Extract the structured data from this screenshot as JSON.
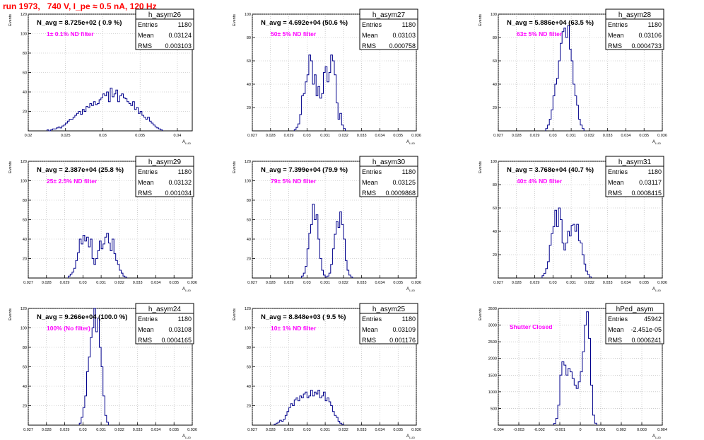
{
  "page": {
    "title": "run 1973,   740 V, I_pe ≈ 0.5 nA, 120 Hz"
  },
  "colors": {
    "hist": "#00008b",
    "note": "#ff00ff",
    "title": "#ff0000",
    "grid": "#b0b0b0"
  },
  "chart_data": [
    {
      "type": "bar",
      "name": "h_asym26",
      "ylabel": "Events",
      "xlabel": "A_LUD",
      "header": "N_avg = 8.725e+02 ( 0.9 %)",
      "note": "1± 0.1% ND filter",
      "stats": {
        "entries": "1180",
        "mean": "0.03124",
        "rms": "0.003103"
      },
      "xlim": [
        0.02,
        0.042
      ],
      "xticks": [
        "0.02",
        "0.025",
        "0.03",
        "0.035",
        "0.04"
      ],
      "xtick_values": [
        0.02,
        0.025,
        0.03,
        0.035,
        0.04
      ],
      "ylim": [
        0,
        120
      ],
      "yticks": [
        "20",
        "40",
        "60",
        "80",
        "100",
        "120"
      ],
      "ytick_values": [
        20,
        40,
        60,
        80,
        100,
        120
      ],
      "x_start": 0.0225,
      "bin_width": 0.00025,
      "values": [
        1,
        0,
        1,
        2,
        2,
        3,
        4,
        3,
        5,
        6,
        8,
        10,
        12,
        12,
        14,
        16,
        18,
        20,
        17,
        22,
        20,
        25,
        24,
        28,
        26,
        30,
        27,
        28,
        32,
        34,
        38,
        36,
        40,
        30,
        44,
        35,
        38,
        42,
        30,
        36,
        38,
        34,
        33,
        30,
        28,
        26,
        30,
        22,
        24,
        18,
        20,
        16,
        14,
        12,
        14,
        10,
        8,
        6,
        4,
        3,
        2,
        1
      ]
    },
    {
      "type": "bar",
      "name": "h_asym27",
      "ylabel": "Events",
      "xlabel": "A_LUD",
      "header": "N_avg = 4.692e+04 (50.6 %)",
      "note": "50± 5% ND filter",
      "stats": {
        "entries": "1180",
        "mean": "0.03103",
        "rms": "0.000758"
      },
      "xlim": [
        0.027,
        0.036
      ],
      "xticks": [
        "0.027",
        "0.028",
        "0.029",
        "0.03",
        "0.031",
        "0.032",
        "0.033",
        "0.034",
        "0.035",
        "0.036"
      ],
      "xtick_values": [
        0.027,
        0.028,
        0.029,
        0.03,
        0.031,
        0.032,
        0.033,
        0.034,
        0.035,
        0.036
      ],
      "ylim": [
        0,
        100
      ],
      "yticks": [
        "20",
        "40",
        "60",
        "80",
        "100"
      ],
      "ytick_values": [
        20,
        40,
        60,
        80,
        100
      ],
      "x_start": 0.0293,
      "bin_width": 0.0001,
      "values": [
        1,
        3,
        6,
        14,
        30,
        32,
        42,
        48,
        65,
        60,
        40,
        48,
        30,
        38,
        28,
        32,
        50,
        55,
        42,
        50,
        65,
        60,
        48,
        24,
        10,
        15,
        5,
        2
      ]
    },
    {
      "type": "bar",
      "name": "h_asym28",
      "ylabel": "Events",
      "xlabel": "A_LUD",
      "header": "N_avg = 5.886e+04 (63.5 %)",
      "note": "63± 5% ND filter",
      "stats": {
        "entries": "1180",
        "mean": "0.03106",
        "rms": "0.0004733"
      },
      "xlim": [
        0.027,
        0.036
      ],
      "xticks": [
        "0.027",
        "0.028",
        "0.029",
        "0.03",
        "0.031",
        "0.032",
        "0.033",
        "0.034",
        "0.035",
        "0.036"
      ],
      "xtick_values": [
        0.027,
        0.028,
        0.029,
        0.03,
        0.031,
        0.032,
        0.033,
        0.034,
        0.035,
        0.036
      ],
      "ylim": [
        0,
        100
      ],
      "yticks": [
        "20",
        "40",
        "60",
        "80",
        "100"
      ],
      "ytick_values": [
        20,
        40,
        60,
        80,
        100
      ],
      "x_start": 0.0296,
      "bin_width": 0.0001,
      "values": [
        2,
        5,
        10,
        18,
        30,
        40,
        45,
        60,
        75,
        85,
        88,
        80,
        90,
        70,
        60,
        40,
        30,
        22,
        10,
        5,
        2
      ]
    },
    {
      "type": "bar",
      "name": "h_asym29",
      "ylabel": "Events",
      "xlabel": "A_LUD",
      "header": "N_avg = 2.387e+04 (25.8 %)",
      "note": "25± 2.5% ND filter",
      "stats": {
        "entries": "1180",
        "mean": "0.03132",
        "rms": "0.001034"
      },
      "xlim": [
        0.027,
        0.036
      ],
      "xticks": [
        "0.027",
        "0.028",
        "0.029",
        "0.03",
        "0.031",
        "0.032",
        "0.033",
        "0.034",
        "0.035",
        "0.036"
      ],
      "xtick_values": [
        0.027,
        0.028,
        0.029,
        0.03,
        0.031,
        0.032,
        0.033,
        0.034,
        0.035,
        0.036
      ],
      "ylim": [
        0,
        120
      ],
      "yticks": [
        "20",
        "40",
        "60",
        "80",
        "100",
        "120"
      ],
      "ytick_values": [
        20,
        40,
        60,
        80,
        100,
        120
      ],
      "x_start": 0.0292,
      "bin_width": 0.0001,
      "values": [
        2,
        4,
        6,
        10,
        18,
        26,
        40,
        35,
        44,
        38,
        42,
        32,
        40,
        20,
        14,
        20,
        28,
        38,
        30,
        35,
        42,
        46,
        36,
        28,
        40,
        25,
        18,
        14,
        8,
        5,
        2,
        1
      ]
    },
    {
      "type": "bar",
      "name": "h_asym30",
      "ylabel": "Events",
      "xlabel": "A_LUD",
      "header": "N_avg = 7.399e+04 (79.9 %)",
      "note": "79± 5% ND filter",
      "stats": {
        "entries": "1180",
        "mean": "0.03125",
        "rms": "0.0009868"
      },
      "xlim": [
        0.027,
        0.036
      ],
      "xticks": [
        "0.027",
        "0.028",
        "0.029",
        "0.03",
        "0.031",
        "0.032",
        "0.033",
        "0.034",
        "0.035",
        "0.036"
      ],
      "xtick_values": [
        0.027,
        0.028,
        0.029,
        0.03,
        0.031,
        0.032,
        0.033,
        0.034,
        0.035,
        0.036
      ],
      "ylim": [
        0,
        120
      ],
      "yticks": [
        "20",
        "40",
        "60",
        "80",
        "100",
        "120"
      ],
      "ytick_values": [
        20,
        40,
        60,
        80,
        100,
        120
      ],
      "x_start": 0.0297,
      "bin_width": 0.0001,
      "values": [
        2,
        5,
        12,
        30,
        46,
        55,
        76,
        60,
        65,
        40,
        20,
        8,
        3,
        1,
        2,
        5,
        14,
        30,
        45,
        58,
        52,
        68,
        55,
        40,
        18,
        8,
        3,
        1
      ]
    },
    {
      "type": "bar",
      "name": "h_asym31",
      "ylabel": "Events",
      "xlabel": "A_LUD",
      "header": "N_avg = 3.768e+04 (40.7 %)",
      "note": "40± 4% ND filter",
      "stats": {
        "entries": "1180",
        "mean": "0.03117",
        "rms": "0.0008415"
      },
      "xlim": [
        0.027,
        0.036
      ],
      "xticks": [
        "0.027",
        "0.028",
        "0.029",
        "0.03",
        "0.031",
        "0.032",
        "0.033",
        "0.034",
        "0.035",
        "0.036"
      ],
      "xtick_values": [
        0.027,
        0.028,
        0.029,
        0.03,
        0.031,
        0.032,
        0.033,
        0.034,
        0.035,
        0.036
      ],
      "ylim": [
        0,
        100
      ],
      "yticks": [
        "20",
        "40",
        "60",
        "80",
        "100"
      ],
      "ytick_values": [
        20,
        40,
        60,
        80,
        100
      ],
      "x_start": 0.0294,
      "bin_width": 0.0001,
      "values": [
        2,
        4,
        8,
        14,
        28,
        38,
        44,
        58,
        44,
        60,
        50,
        30,
        24,
        30,
        40,
        36,
        45,
        46,
        40,
        46,
        32,
        30,
        20,
        12,
        6,
        3,
        1
      ]
    },
    {
      "type": "bar",
      "name": "h_asym24",
      "ylabel": "Events",
      "xlabel": "A_LUD",
      "header": "N_avg = 9.266e+04 (100.0 %)",
      "note": "100% (No filter)",
      "stats": {
        "entries": "1180",
        "mean": "0.03108",
        "rms": "0.0004165"
      },
      "xlim": [
        0.027,
        0.036
      ],
      "xticks": [
        "0.027",
        "0.028",
        "0.029",
        "0.03",
        "0.031",
        "0.032",
        "0.033",
        "0.034",
        "0.035",
        "0.036"
      ],
      "xtick_values": [
        0.027,
        0.028,
        0.029,
        0.03,
        0.031,
        0.032,
        0.033,
        0.034,
        0.035,
        0.036
      ],
      "ylim": [
        0,
        120
      ],
      "yticks": [
        "20",
        "40",
        "60",
        "80",
        "100",
        "120"
      ],
      "ytick_values": [
        20,
        40,
        60,
        80,
        100,
        120
      ],
      "x_start": 0.0298,
      "bin_width": 0.0001,
      "values": [
        2,
        8,
        18,
        30,
        55,
        70,
        90,
        100,
        120,
        96,
        110,
        80,
        60,
        30,
        10,
        3
      ]
    },
    {
      "type": "bar",
      "name": "h_asym25",
      "ylabel": "Events",
      "xlabel": "A_LUD",
      "header": "N_avg = 8.848e+03 ( 9.5 %)",
      "note": "10± 1% ND filter",
      "stats": {
        "entries": "1180",
        "mean": "0.03109",
        "rms": "0.001176"
      },
      "xlim": [
        0.027,
        0.036
      ],
      "xticks": [
        "0.027",
        "0.028",
        "0.029",
        "0.03",
        "0.031",
        "0.032",
        "0.033",
        "0.034",
        "0.035",
        "0.036"
      ],
      "xtick_values": [
        0.027,
        0.028,
        0.029,
        0.03,
        0.031,
        0.032,
        0.033,
        0.034,
        0.035,
        0.036
      ],
      "ylim": [
        0,
        120
      ],
      "yticks": [
        "20",
        "40",
        "60",
        "80",
        "100",
        "120"
      ],
      "ytick_values": [
        20,
        40,
        60,
        80,
        100,
        120
      ],
      "x_start": 0.0282,
      "bin_width": 0.0001,
      "values": [
        1,
        2,
        3,
        5,
        4,
        6,
        10,
        14,
        18,
        22,
        20,
        26,
        28,
        25,
        30,
        28,
        32,
        34,
        28,
        30,
        36,
        30,
        34,
        32,
        36,
        28,
        30,
        34,
        25,
        28,
        24,
        20,
        14,
        10,
        8,
        4,
        2,
        1
      ]
    },
    {
      "type": "bar",
      "name": "hPed_asym",
      "ylabel": "Events",
      "xlabel": "A_LUD",
      "header": "",
      "note": "Shutter Closed",
      "stats": {
        "entries": "45942",
        "mean": "-2.451e-05",
        "rms": "0.0006241"
      },
      "xlim": [
        -0.004,
        0.004
      ],
      "xticks": [
        "-0.004",
        "-0.003",
        "-0.002",
        "-0.001",
        "0",
        "0.001",
        "0.002",
        "0.003",
        "0.004"
      ],
      "xtick_values": [
        -0.004,
        -0.003,
        -0.002,
        -0.001,
        0,
        0.001,
        0.002,
        0.003,
        0.004
      ],
      "ylim": [
        0,
        3500
      ],
      "yticks": [
        "500",
        "1000",
        "1500",
        "2000",
        "2500",
        "3000",
        "3500"
      ],
      "ytick_values": [
        500,
        1000,
        1500,
        2000,
        2500,
        3000,
        3500
      ],
      "x_start": -0.0013,
      "bin_width": 0.0001,
      "values": [
        50,
        200,
        600,
        1500,
        1900,
        1800,
        1500,
        1700,
        1600,
        1400,
        1200,
        1100,
        1300,
        1600,
        2200,
        3000,
        3400,
        2600,
        1200,
        300,
        60
      ]
    }
  ]
}
